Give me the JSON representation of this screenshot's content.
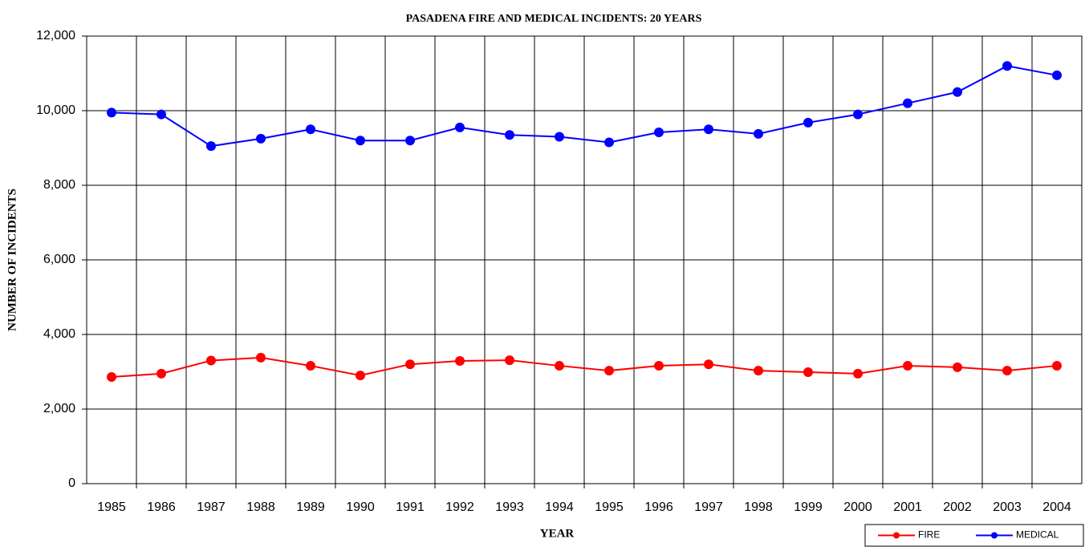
{
  "chart_data": {
    "type": "line",
    "title": "PASADENA FIRE AND MEDICAL INCIDENTS: 20 YEARS",
    "x_label": "YEAR",
    "y_label": "NUMBER OF INCIDENTS",
    "categories": [
      "1985",
      "1986",
      "1987",
      "1988",
      "1989",
      "1990",
      "1991",
      "1992",
      "1993",
      "1994",
      "1995",
      "1996",
      "1997",
      "1998",
      "1999",
      "2000",
      "2001",
      "2002",
      "2003",
      "2004"
    ],
    "series": [
      {
        "name": "FIRE",
        "color": "#ff0000",
        "values": [
          2860,
          2950,
          3300,
          3380,
          3160,
          2900,
          3200,
          3290,
          3310,
          3160,
          3030,
          3160,
          3200,
          3030,
          2990,
          2950,
          3160,
          3120,
          3030,
          3160
        ]
      },
      {
        "name": "MEDICAL",
        "color": "#0000ff",
        "values": [
          9950,
          9900,
          9050,
          9250,
          9500,
          9200,
          9200,
          9550,
          9350,
          9300,
          9150,
          9420,
          9500,
          9380,
          9680,
          9900,
          10200,
          10500,
          11200,
          10950
        ]
      }
    ],
    "ylim": [
      0,
      12000
    ],
    "yticks": [
      0,
      {
        "value": 2000,
        "label": "2,000"
      },
      {
        "value": 4000,
        "label": "4,000"
      },
      {
        "value": 6000,
        "label": "6,000"
      },
      {
        "value": 8000,
        "label": "8,000"
      },
      {
        "value": 10000,
        "label": "10,000"
      },
      {
        "value": 12000,
        "label": "12,000"
      }
    ],
    "grid": true,
    "legend": "lower right"
  }
}
